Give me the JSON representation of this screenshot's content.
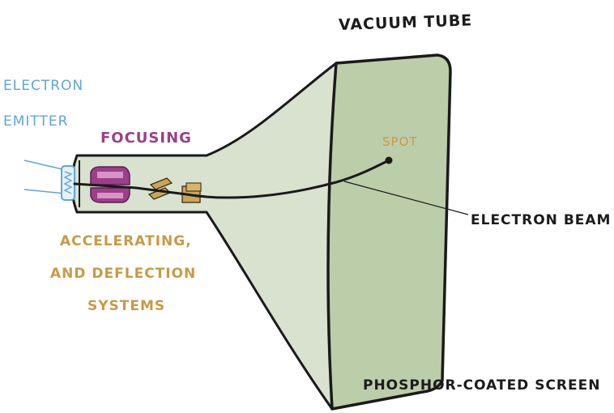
{
  "labels": {
    "vacuum_tube": "Vacuum Tube",
    "electron_emitter_line1": "Electron",
    "electron_emitter_line2": "Emitter",
    "focusing": "Focusing",
    "spot": "Spot",
    "electron_beam": "Electron Beam",
    "accelerating_line1": "Accelerating,",
    "accelerating_line2": "and Deflection",
    "accelerating_line3": "Systems",
    "phosphor_screen": "Phosphor-Coated Screen"
  },
  "colors": {
    "outline": "#1a1a1a",
    "tube_fill": "#d7e1cc",
    "screen_fill": "#bccdaa",
    "emitter_label": "#5fa6d6",
    "focusing_label": "#9b3f8a",
    "focusing_part": "#9b3f8a",
    "accelerating_label": "#c89a45",
    "deflection_part": "#c9a55c",
    "spot_label": "#c89a45",
    "dark_label": "#1b1b1b"
  }
}
